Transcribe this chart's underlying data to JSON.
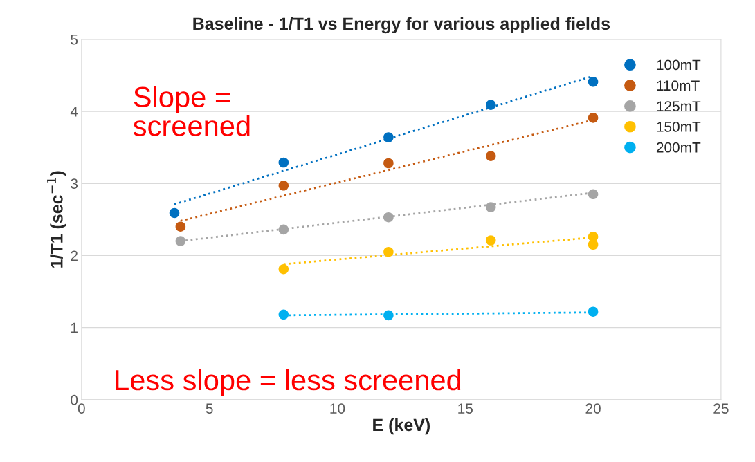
{
  "chart_data": {
    "type": "scatter",
    "title": "Baseline - 1/T1 vs Energy for various applied fields",
    "xlabel": "E (keV)",
    "ylabel": "1/T1 (sec$^{−1}$)",
    "xlim": [
      0,
      25
    ],
    "xticks": [
      0,
      5,
      10,
      15,
      20,
      25
    ],
    "ylim": [
      0,
      5
    ],
    "yticks": [
      0,
      1,
      2,
      3,
      4,
      5
    ],
    "grid": "y",
    "legend": "top right",
    "series": [
      {
        "name": "100mT",
        "color": "#0070c0",
        "marker": "circle",
        "x": [
          3.63,
          7.9,
          12,
          16,
          20
        ],
        "values": [
          2.59,
          3.29,
          3.64,
          4.09,
          4.41
        ]
      },
      {
        "name": "110mT",
        "color": "#c55a11",
        "marker": "circle",
        "x": [
          3.87,
          7.9,
          12,
          16,
          20
        ],
        "values": [
          2.4,
          2.97,
          3.28,
          3.38,
          3.91
        ]
      },
      {
        "name": "125mT",
        "color": "#a5a5a5",
        "marker": "circle",
        "x": [
          3.87,
          7.9,
          12,
          16,
          20
        ],
        "values": [
          2.2,
          2.36,
          2.53,
          2.67,
          2.85
        ]
      },
      {
        "name": "150mT",
        "color": "#ffc000",
        "marker": "circle",
        "x": [
          7.9,
          12,
          16,
          20,
          20
        ],
        "values": [
          1.81,
          2.05,
          2.21,
          2.26,
          2.15
        ]
      },
      {
        "name": "200mT",
        "color": "#00b0f0",
        "marker": "circle",
        "x": [
          7.9,
          12,
          20
        ],
        "values": [
          1.18,
          1.17,
          1.22
        ]
      },
      {
        "color": "#0070c0",
        "type": "line",
        "line_style": "dotted",
        "x": [
          3.63,
          20
        ],
        "values": [
          2.71,
          4.49
        ]
      },
      {
        "color": "#c55a11",
        "type": "line",
        "line_style": "dotted",
        "x": [
          3.87,
          20
        ],
        "values": [
          2.48,
          3.88
        ]
      },
      {
        "color": "#a5a5a5",
        "type": "line",
        "line_style": "dotted",
        "x": [
          3.87,
          20
        ],
        "values": [
          2.2,
          2.87
        ]
      },
      {
        "color": "#ffc000",
        "type": "line",
        "line_style": "dotted",
        "x": [
          7.9,
          20
        ],
        "values": [
          1.88,
          2.25
        ]
      },
      {
        "color": "#00b0f0",
        "type": "line",
        "line_style": "dotted",
        "x": [
          7.9,
          20
        ],
        "values": [
          1.17,
          1.21
        ]
      }
    ],
    "annotations": [
      "Slope =\nscreened",
      "Less slope = less screened"
    ]
  }
}
